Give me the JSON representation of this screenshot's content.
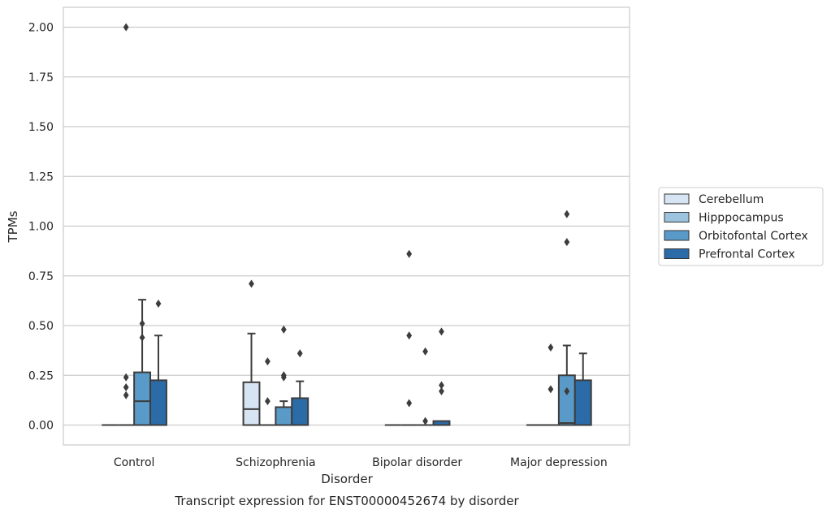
{
  "chart_data": {
    "type": "box",
    "caption": "Transcript expression for ENST00000452674 by disorder",
    "xlabel": "Disorder",
    "ylabel": "TPMs",
    "ylim": [
      -0.1,
      2.1
    ],
    "yticks": [
      0.0,
      0.25,
      0.5,
      0.75,
      1.0,
      1.25,
      1.5,
      1.75,
      2.0
    ],
    "ytick_labels": [
      "0.00",
      "0.25",
      "0.50",
      "0.75",
      "1.00",
      "1.25",
      "1.50",
      "1.75",
      "2.00"
    ],
    "categories": [
      "Control",
      "Schizophrenia",
      "Bipolar disorder",
      "Major depression"
    ],
    "grid": true,
    "legend_position": "right",
    "series": [
      {
        "name": "Cerebellum",
        "color": "#d6e4f3",
        "boxes": [
          {
            "whislo": 0.0,
            "q1": 0.0,
            "med": 0.0,
            "q3": 0.0,
            "whishi": 0.0,
            "fliers": []
          },
          {
            "whislo": 0.0,
            "q1": 0.0,
            "med": 0.08,
            "q3": 0.215,
            "whishi": 0.46,
            "fliers": [
              0.71
            ]
          },
          {
            "whislo": 0.0,
            "q1": 0.0,
            "med": 0.0,
            "q3": 0.0,
            "whishi": 0.0,
            "fliers": []
          },
          {
            "whislo": 0.0,
            "q1": 0.0,
            "med": 0.0,
            "q3": 0.0,
            "whishi": 0.0,
            "fliers": []
          }
        ]
      },
      {
        "name": "Hipppocampus",
        "color": "#9cc4df",
        "boxes": [
          {
            "whislo": 0.0,
            "q1": 0.0,
            "med": 0.0,
            "q3": 0.0,
            "whishi": 0.0,
            "fliers": [
              0.15,
              0.19,
              0.24,
              2.0
            ]
          },
          {
            "whislo": 0.0,
            "q1": 0.0,
            "med": 0.0,
            "q3": 0.0,
            "whishi": 0.0,
            "fliers": [
              0.12,
              0.32
            ]
          },
          {
            "whislo": 0.0,
            "q1": 0.0,
            "med": 0.0,
            "q3": 0.0,
            "whishi": 0.0,
            "fliers": [
              0.11,
              0.45,
              0.86
            ]
          },
          {
            "whislo": 0.0,
            "q1": 0.0,
            "med": 0.0,
            "q3": 0.0,
            "whishi": 0.0,
            "fliers": [
              0.18,
              0.39
            ]
          }
        ]
      },
      {
        "name": "Orbitofontal Cortex",
        "color": "#5a9ac9",
        "boxes": [
          {
            "whislo": 0.0,
            "q1": 0.0,
            "med": 0.12,
            "q3": 0.265,
            "whishi": 0.63,
            "fliers": [
              0.44,
              0.51
            ]
          },
          {
            "whislo": 0.0,
            "q1": 0.0,
            "med": 0.0,
            "q3": 0.09,
            "whishi": 0.12,
            "fliers": [
              0.24,
              0.25,
              0.48
            ]
          },
          {
            "whislo": 0.0,
            "q1": 0.0,
            "med": 0.0,
            "q3": 0.0,
            "whishi": 0.0,
            "fliers": [
              0.02,
              0.37
            ]
          },
          {
            "whislo": 0.0,
            "q1": 0.0,
            "med": 0.01,
            "q3": 0.25,
            "whishi": 0.4,
            "fliers": [
              0.17,
              0.92,
              1.06
            ]
          }
        ]
      },
      {
        "name": "Prefrontal Cortex",
        "color": "#2b6ca8",
        "boxes": [
          {
            "whislo": 0.0,
            "q1": 0.0,
            "med": 0.0,
            "q3": 0.225,
            "whishi": 0.45,
            "fliers": [
              0.61
            ]
          },
          {
            "whislo": 0.0,
            "q1": 0.0,
            "med": 0.0,
            "q3": 0.135,
            "whishi": 0.22,
            "fliers": [
              0.36
            ]
          },
          {
            "whislo": 0.0,
            "q1": 0.0,
            "med": 0.0,
            "q3": 0.02,
            "whishi": 0.02,
            "fliers": [
              0.17,
              0.2,
              0.47
            ]
          },
          {
            "whislo": 0.0,
            "q1": 0.0,
            "med": 0.0,
            "q3": 0.225,
            "whishi": 0.36,
            "fliers": []
          }
        ]
      }
    ]
  }
}
